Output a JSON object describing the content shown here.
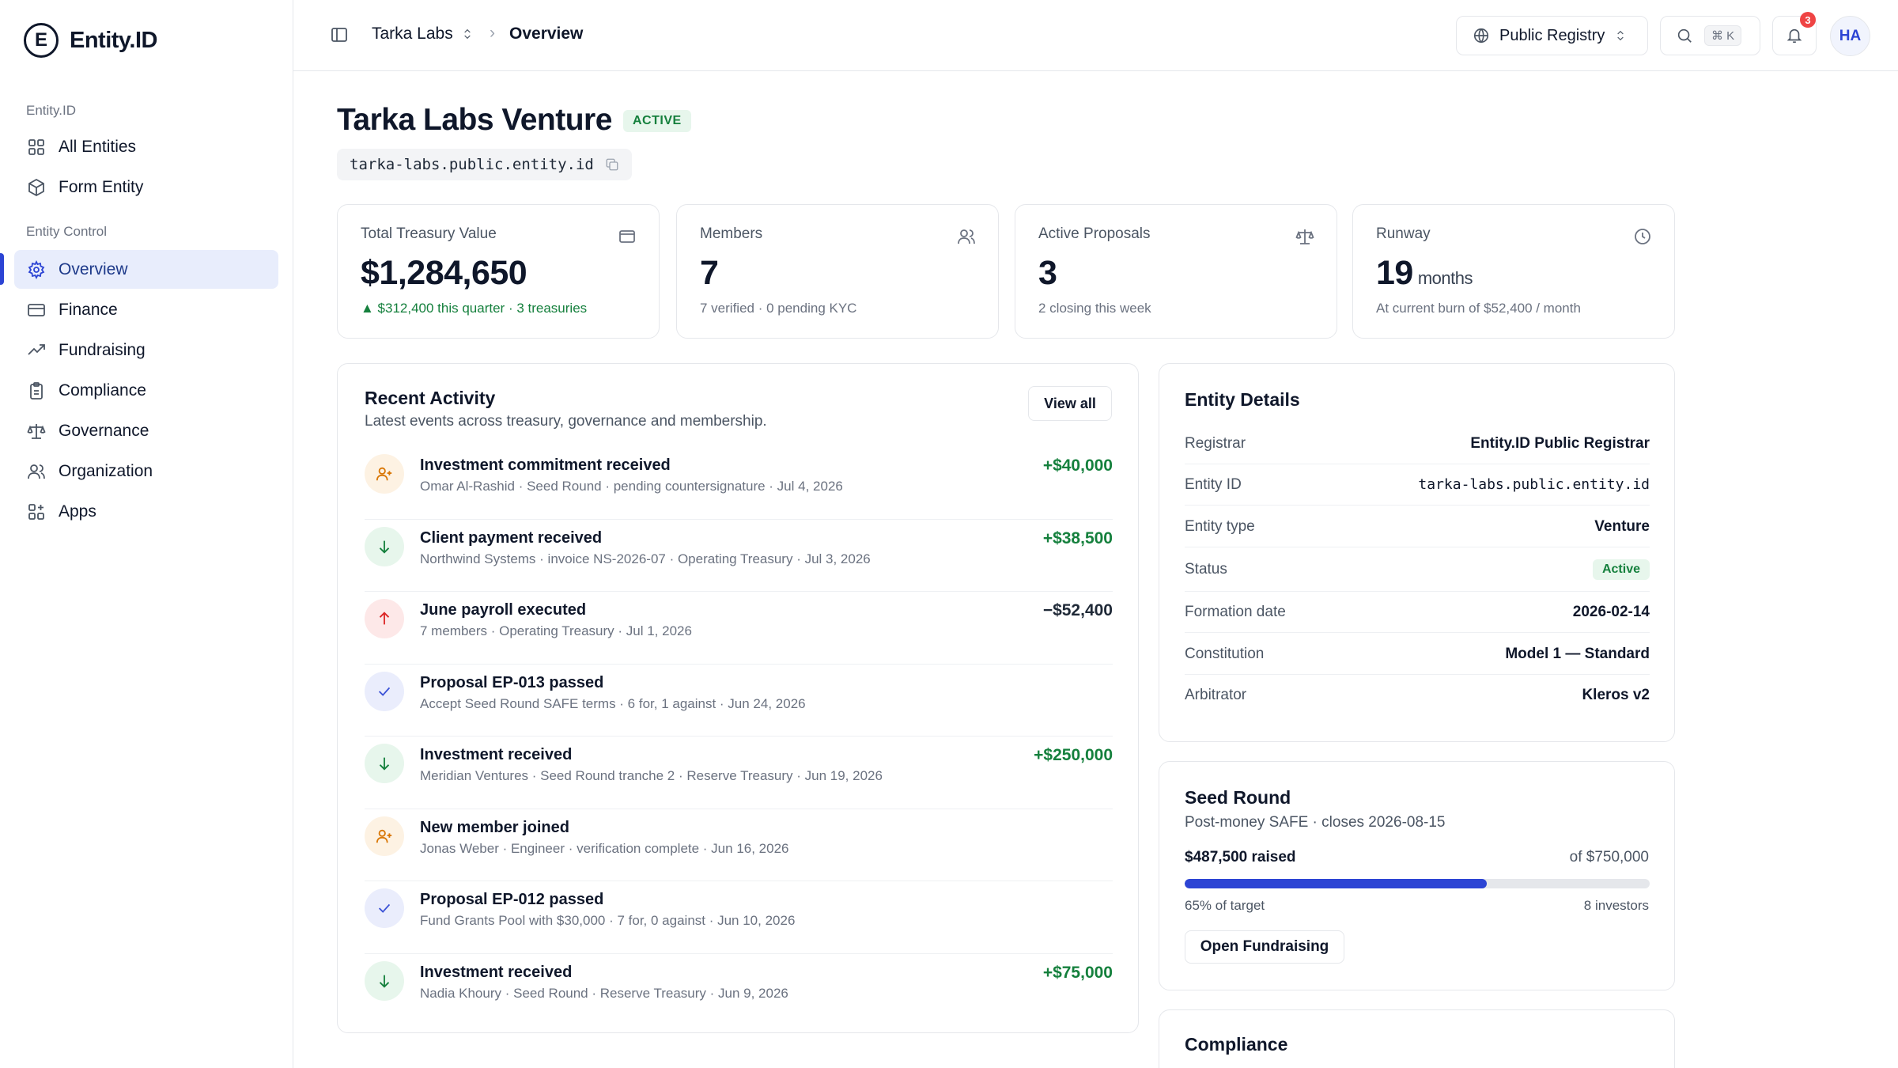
{
  "brand": {
    "logo_letter": "E",
    "name": "Entity.ID"
  },
  "sidebar": {
    "section1": "Entity.ID",
    "section2": "Entity Control",
    "items": [
      {
        "label": "All Entities",
        "icon": "grid-icon"
      },
      {
        "label": "Form Entity",
        "icon": "cube-icon"
      },
      {
        "label": "Overview",
        "icon": "gear-icon",
        "active": true
      },
      {
        "label": "Finance",
        "icon": "credit-card-icon"
      },
      {
        "label": "Fundraising",
        "icon": "trending-up-icon"
      },
      {
        "label": "Compliance",
        "icon": "clipboard-icon"
      },
      {
        "label": "Governance",
        "icon": "scale-icon"
      },
      {
        "label": "Organization",
        "icon": "users-icon"
      },
      {
        "label": "Apps",
        "icon": "apps-icon"
      }
    ]
  },
  "topbar": {
    "org": "Tarka Labs",
    "separator": "›",
    "current": "Overview",
    "registry": "Public Registry",
    "search_shortcut": "⌘ K",
    "notifications_count": "3",
    "avatar_initials": "HA"
  },
  "header": {
    "title": "Tarka Labs Venture",
    "status": "ACTIVE",
    "domain": "tarka-labs.public.entity.id"
  },
  "stats": [
    {
      "label": "Total Treasury Value",
      "value": "$1,284,650",
      "unit": "",
      "sub": "▲ $312,400 this quarter · 3 treasuries",
      "icon": "wallet-icon"
    },
    {
      "label": "Members",
      "value": "7",
      "unit": "",
      "sub": "7 verified · 0 pending KYC",
      "icon": "users-icon"
    },
    {
      "label": "Active Proposals",
      "value": "3",
      "unit": "",
      "sub": "2 closing this week",
      "icon": "scale-icon"
    },
    {
      "label": "Runway",
      "value": "19",
      "unit": "months",
      "sub": "At current burn of $52,400 / month",
      "icon": "clock-icon"
    }
  ],
  "activity": {
    "title": "Recent Activity",
    "subtitle": "Latest events across treasury, governance and membership.",
    "view_all": "View all",
    "items": [
      {
        "title": "Investment commitment received",
        "meta": "Omar Al-Rashid · Seed Round · pending countersignature · Jul 4, 2026",
        "amount": "+$40,000",
        "icon": "user-plus-icon"
      },
      {
        "title": "Client payment received",
        "meta": "Northwind Systems · invoice NS-2026-07 · Operating Treasury · Jul 3, 2026",
        "amount": "+$38,500",
        "icon": "arrow-down-icon"
      },
      {
        "title": "June payroll executed",
        "meta": "7 members · Operating Treasury · Jul 1, 2026",
        "amount": "−$52,400",
        "icon": "arrow-up-icon"
      },
      {
        "title": "Proposal EP-013 passed",
        "meta": "Accept Seed Round SAFE terms · 6 for, 1 against · Jun 24, 2026",
        "amount": "",
        "icon": "check-icon"
      },
      {
        "title": "Investment received",
        "meta": "Meridian Ventures · Seed Round tranche 2 · Reserve Treasury · Jun 19, 2026",
        "amount": "+$250,000",
        "icon": "arrow-down-icon"
      },
      {
        "title": "New member joined",
        "meta": "Jonas Weber · Engineer · verification complete · Jun 16, 2026",
        "amount": "",
        "icon": "user-plus-icon"
      },
      {
        "title": "Proposal EP-012 passed",
        "meta": "Fund Grants Pool with $30,000 · 7 for, 0 against · Jun 10, 2026",
        "amount": "",
        "icon": "check-icon"
      },
      {
        "title": "Investment received",
        "meta": "Nadia Khoury · Seed Round · Reserve Treasury · Jun 9, 2026",
        "amount": "+$75,000",
        "icon": "arrow-down-icon"
      }
    ]
  },
  "details": {
    "title": "Entity Details",
    "rows": [
      {
        "label": "Registrar",
        "value": "Entity.ID Public Registrar"
      },
      {
        "label": "Entity ID",
        "value": "tarka-labs.public.entity.id"
      },
      {
        "label": "Entity type",
        "value": "Venture"
      },
      {
        "label": "Status",
        "value": "Active"
      },
      {
        "label": "Formation date",
        "value": "2026-02-14"
      },
      {
        "label": "Constitution",
        "value": "Model 1 — Standard"
      },
      {
        "label": "Arbitrator",
        "value": "Kleros v2"
      }
    ]
  },
  "seed_round": {
    "title": "Seed Round",
    "subtitle": "Post-money SAFE · closes 2026-08-15",
    "raised": "$487,500 raised",
    "target": "of $750,000",
    "progress": 0.65,
    "percent_label": "65% of target",
    "investors": "8 investors",
    "button": "Open Fundraising"
  },
  "compliance": {
    "title": "Compliance"
  },
  "colors": {
    "accent": "#2c44d4",
    "positive": "#15803d",
    "negative": "#dc2626",
    "warning": "#d97706"
  }
}
